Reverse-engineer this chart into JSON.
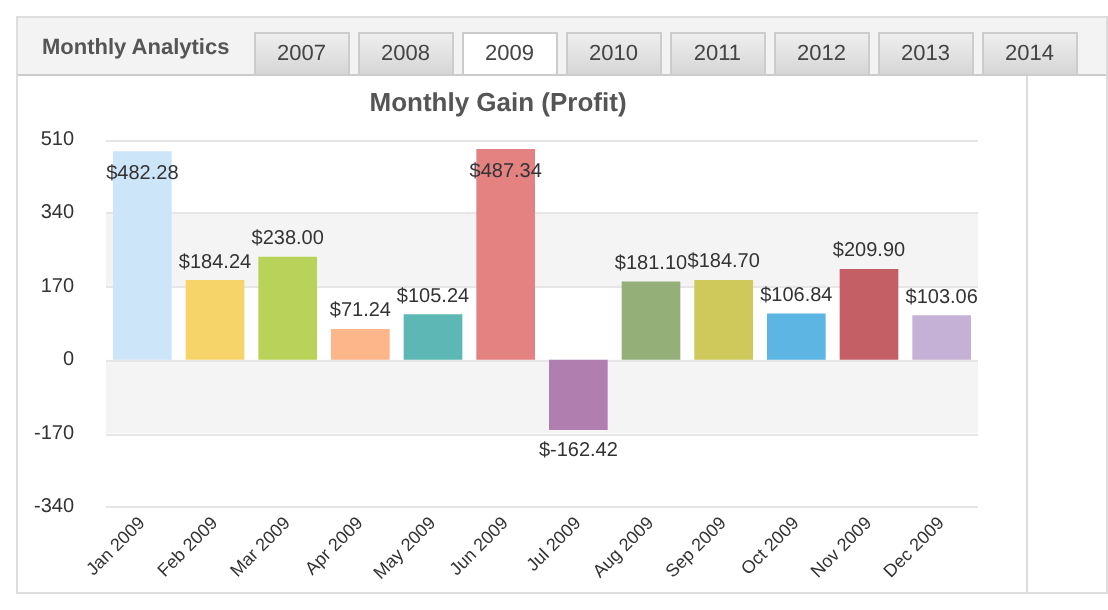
{
  "chart_data": {
    "type": "bar",
    "title": "Monthly Gain (Profit)",
    "annotations": [
      "Monthly Analytics",
      "2007",
      "2008",
      "2009",
      "2010",
      "2011",
      "2012",
      "2013",
      "2014"
    ],
    "categories": [
      "Jan 2009",
      "Feb 2009",
      "Mar 2009",
      "Apr 2009",
      "May 2009",
      "Jun 2009",
      "Jul 2009",
      "Aug 2009",
      "Sep 2009",
      "Oct 2009",
      "Nov 2009",
      "Dec 2009"
    ],
    "values": [
      482.28,
      184.24,
      238.0,
      71.24,
      105.24,
      487.34,
      -162.42,
      181.1,
      184.7,
      106.84,
      209.9,
      103.06
    ],
    "colors": [
      "#cce5f8",
      "#f7d46a",
      "#b8d25a",
      "#fdb58a",
      "#5db8b5",
      "#e48282",
      "#b07fb0",
      "#94b078",
      "#cfc85a",
      "#5cb5e3",
      "#c55f66",
      "#c5b1d6"
    ],
    "value_labels": [
      "$482.28",
      "$184.24",
      "$238.00",
      "$71.24",
      "$105.24",
      "$487.34",
      "$-162.42",
      "$181.10",
      "$184.70",
      "$106.84",
      "$209.90",
      "$103.06"
    ],
    "ylim": [
      -340,
      510
    ],
    "yticks": [
      -340,
      -170,
      0,
      170,
      340,
      510
    ],
    "grid": "y",
    "legend": false
  }
}
